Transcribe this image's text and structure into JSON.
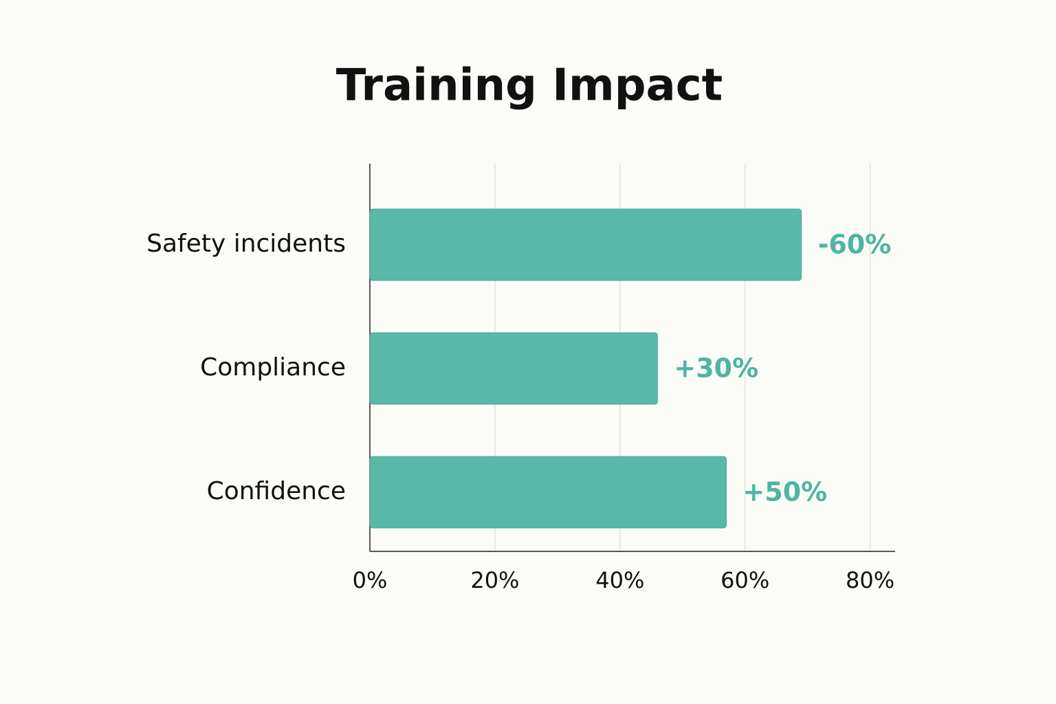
{
  "chart_data": {
    "type": "bar",
    "orientation": "horizontal",
    "title": "Training Impact",
    "categories": [
      "Safety incidents",
      "Compliance",
      "Confidence"
    ],
    "values": [
      69,
      46,
      57
    ],
    "annotations": [
      "-60%",
      "+30%",
      "+50%"
    ],
    "color": "#5ab8a8",
    "xlim": [
      0,
      84
    ],
    "xticks": [
      {
        "value": 0,
        "label": "0%"
      },
      {
        "value": 20,
        "label": "20%"
      },
      {
        "value": 40,
        "label": "40%"
      },
      {
        "value": 60,
        "label": "60%"
      },
      {
        "value": 80,
        "label": "80%"
      }
    ],
    "grid": true
  }
}
